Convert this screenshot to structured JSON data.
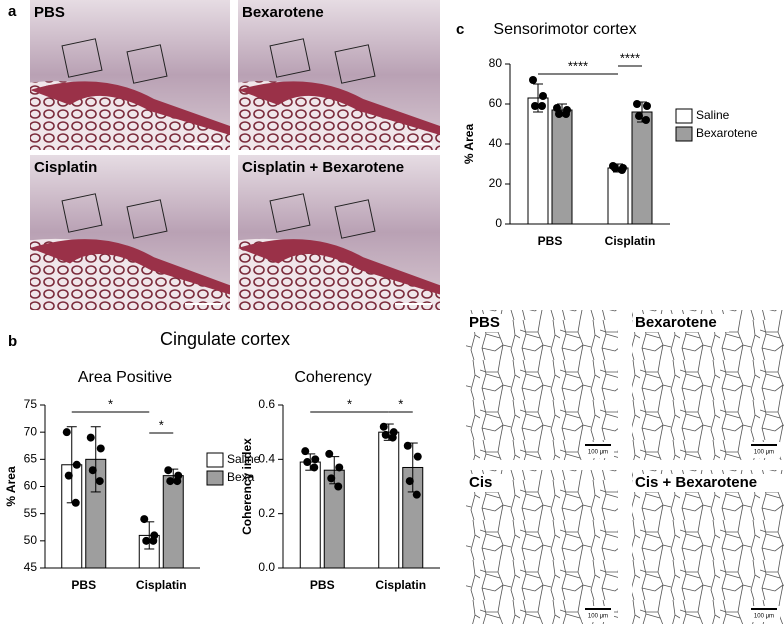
{
  "panel_labels": [
    "a",
    "b",
    "c"
  ],
  "section_title": "Cingulate cortex",
  "histology": [
    {
      "label": "PBS"
    },
    {
      "label": "Bexarotene"
    },
    {
      "label": "Cisplatin"
    },
    {
      "label": "Cisplatin + Bexarotene"
    }
  ],
  "skeleton": [
    {
      "label": "PBS",
      "scale_label": "100 μm"
    },
    {
      "label": "Bexarotene",
      "scale_label": "100 μm"
    },
    {
      "label": "Cis",
      "scale_label": "100 μm"
    },
    {
      "label": "Cis + Bexarotene",
      "scale_label": "100 μm"
    }
  ],
  "chart_data": [
    {
      "type": "bar",
      "title": "Area Positive",
      "ylabel": "% Area",
      "categories": [
        "PBS",
        "Cisplatin"
      ],
      "series": [
        {
          "name": "Saline",
          "color": "#ffffff",
          "values": [
            64,
            51
          ],
          "errors": [
            7,
            2.5
          ],
          "points": [
            [
              70,
              64,
              62,
              57
            ],
            [
              54,
              51,
              50,
              50
            ]
          ]
        },
        {
          "name": "Bexa",
          "color": "#9e9e9e",
          "values": [
            65,
            62
          ],
          "errors": [
            6,
            1.2
          ],
          "points": [
            [
              69,
              67,
              63,
              61
            ],
            [
              63,
              62,
              61,
              61
            ]
          ]
        }
      ],
      "ylim": [
        45,
        75
      ],
      "yticks": [
        45,
        50,
        55,
        60,
        65,
        70,
        75
      ],
      "legend": true,
      "annotations": [
        "*",
        "*"
      ]
    },
    {
      "type": "bar",
      "title": "Coherency",
      "ylabel": "Coherency index",
      "categories": [
        "PBS",
        "Cisplatin"
      ],
      "series": [
        {
          "color": "#ffffff",
          "values": [
            0.39,
            0.5
          ],
          "errors": [
            0.03,
            0.03
          ],
          "points": [
            [
              0.43,
              0.4,
              0.39,
              0.37
            ],
            [
              0.52,
              0.5,
              0.49,
              0.48
            ]
          ]
        },
        {
          "color": "#9e9e9e",
          "values": [
            0.36,
            0.37
          ],
          "errors": [
            0.05,
            0.09
          ],
          "points": [
            [
              0.42,
              0.37,
              0.33,
              0.3
            ],
            [
              0.45,
              0.41,
              0.32,
              0.27
            ]
          ]
        }
      ],
      "ylim": [
        0,
        0.6
      ],
      "yticks": [
        {
          "value": 0,
          "label": "0.0"
        },
        0.2,
        0.4,
        0.6
      ],
      "legend": false,
      "annotations": [
        "*",
        "*"
      ]
    },
    {
      "type": "bar",
      "title": "Sensorimotor cortex",
      "ylabel": "% Area",
      "categories": [
        "PBS",
        "Cisplatin"
      ],
      "series": [
        {
          "name": "Saline",
          "color": "#ffffff",
          "values": [
            63,
            28
          ],
          "errors": [
            7,
            2
          ],
          "points": [
            [
              72,
              64,
              59,
              59
            ],
            [
              29,
              28,
              28,
              27
            ]
          ]
        },
        {
          "name": "Bexarotene",
          "color": "#9e9e9e",
          "values": [
            57,
            56
          ],
          "errors": [
            3,
            5
          ],
          "points": [
            [
              58,
              57,
              55,
              55
            ],
            [
              60,
              59,
              54,
              52
            ]
          ]
        }
      ],
      "ylim": [
        0,
        80
      ],
      "yticks": [
        0,
        20,
        40,
        60,
        80
      ],
      "legend": true,
      "annotations": [
        "****",
        "****"
      ]
    }
  ]
}
